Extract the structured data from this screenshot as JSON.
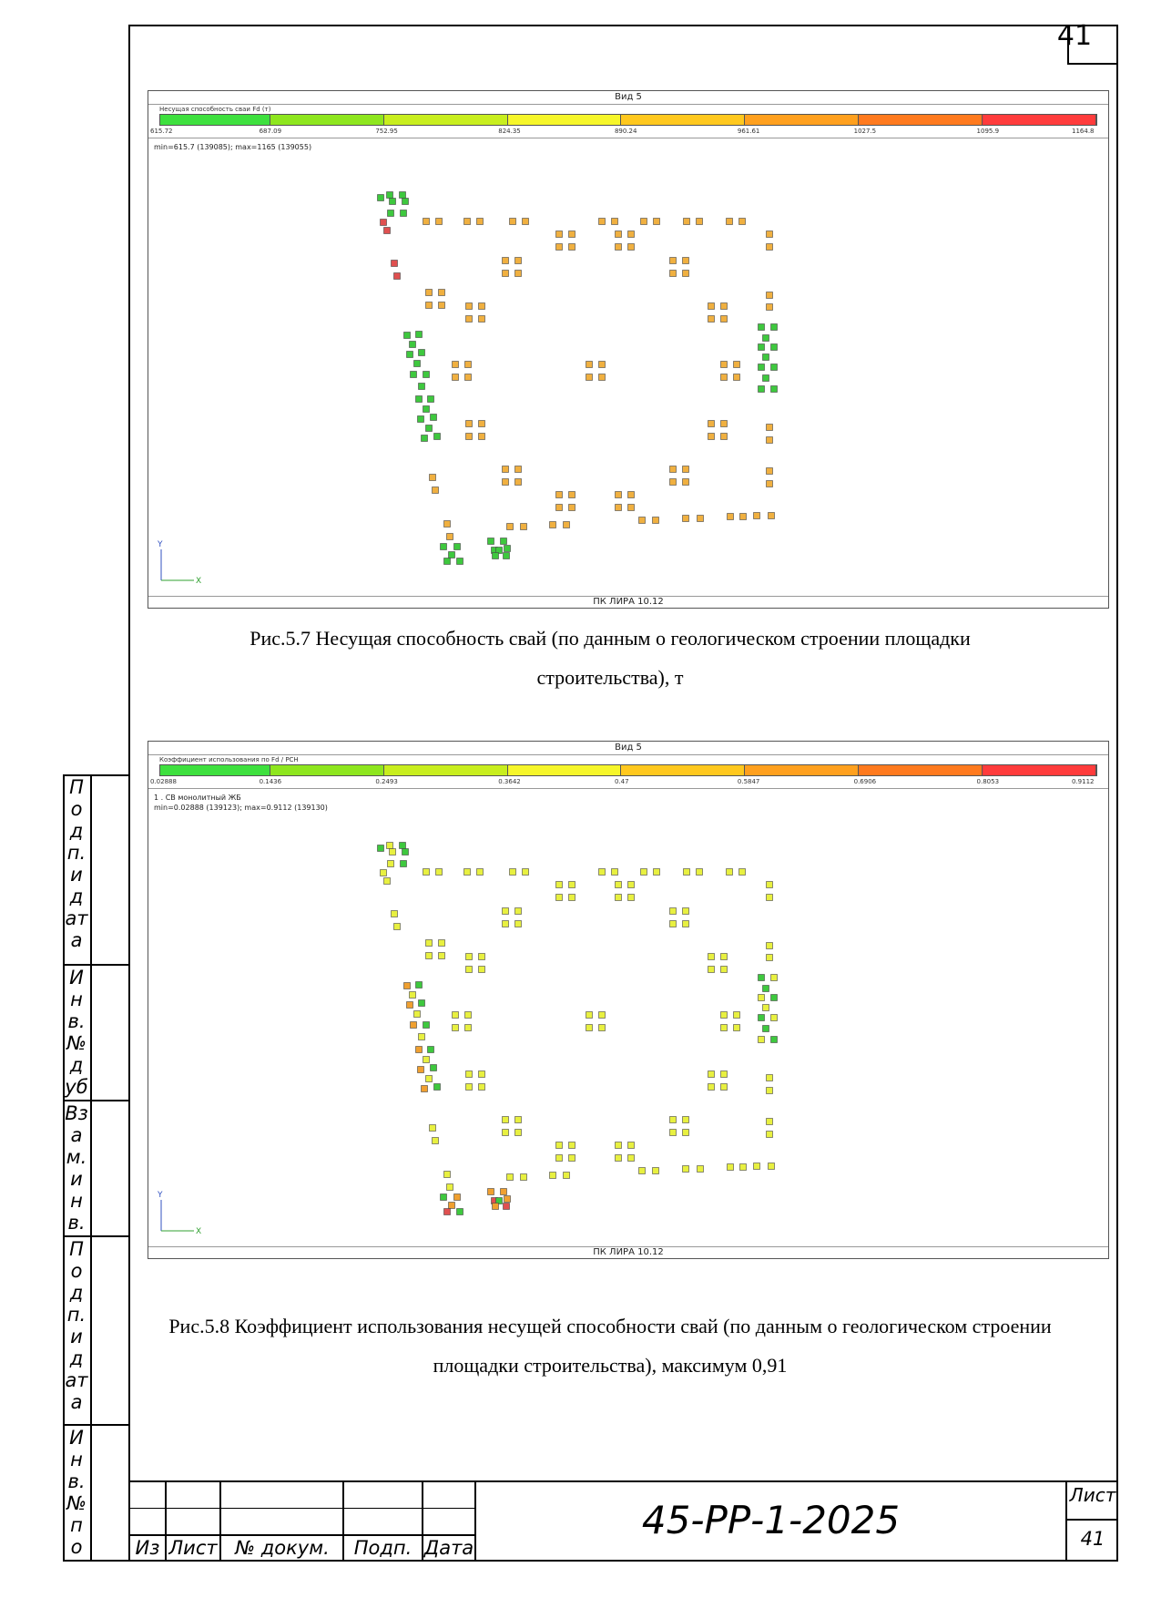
{
  "page_number": "41",
  "figures": [
    {
      "view_title": "Вид 5",
      "scale_header": "Несущая способность сваи Fd (т)",
      "scale_labels": [
        "615.72",
        "687.09",
        "752.95",
        "824.35",
        "890.24",
        "961.61",
        "1027.5",
        "1095.9",
        "1164.8"
      ],
      "scale_colors": [
        "#3ee03e",
        "#8ee61e",
        "#c8ee1e",
        "#f6f62a",
        "#ffc81e",
        "#ffa01e",
        "#ff7a1e",
        "#ff3c3c"
      ],
      "info_lines": [
        "min=615.7 (139085); max=1165 (139055)"
      ],
      "footer": "ПК ЛИРА 10.12",
      "axis_y": "Y",
      "axis_x": "X",
      "caption": "Рис.5.7 Несущая способность свай (по данным о геологическом строении площадки строительства), т",
      "pile_color_main": "#f0b040",
      "pile_color_green": "#3ec83e",
      "pile_color_red": "#e05050"
    },
    {
      "view_title": "Вид 5",
      "scale_header": "Коэффициент использования по Fd / PCH",
      "scale_labels": [
        "0.02888",
        "0.1436",
        "0.2493",
        "0.3642",
        "0.47",
        "0.5847",
        "0.6906",
        "0.8053",
        "0.9112"
      ],
      "scale_colors": [
        "#3ee03e",
        "#8ee61e",
        "#c8ee1e",
        "#f6f62a",
        "#ffc81e",
        "#ffa01e",
        "#ff7a1e",
        "#ff3c3c"
      ],
      "info_lines": [
        "1 . СВ монолитный ЖБ",
        "min=0.02888 (139123); max=0.9112 (139130)"
      ],
      "footer": "ПК ЛИРА 10.12",
      "axis_y": "Y",
      "axis_x": "X",
      "caption": "Рис.5.8 Коэффициент использования несущей способности свай (по данным о геологическом строении площадки строительства), максимум 0,91",
      "pile_color_main": "#e8f040",
      "pile_color_green": "#3ec83e",
      "pile_color_red": "#e05050"
    }
  ],
  "side_stamp": {
    "labels": [
      "Подп. и дата",
      "Инв. № дубл.",
      "Взам. инв. №",
      "Подп. и дата",
      "Инв. № подл."
    ]
  },
  "title_block": {
    "columns": [
      "Из",
      "Лист",
      "№ докум.",
      "Подп.",
      "Дата"
    ],
    "doc_code": "45-РР-1-2025",
    "sheet_label": "Лист",
    "sheet_number": "41"
  }
}
